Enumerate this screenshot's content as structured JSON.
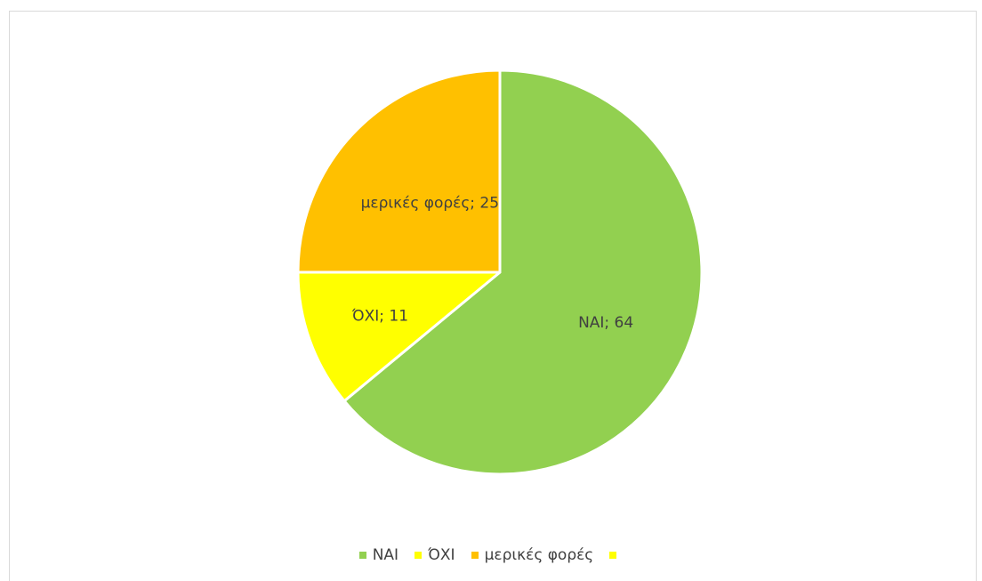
{
  "chart_data": {
    "type": "pie",
    "categories": [
      "ΝΑΙ",
      "ΌΧΙ",
      "μερικές φορές",
      ""
    ],
    "values": [
      64,
      11,
      25,
      0
    ],
    "colors": [
      "#92d050",
      "#ffff00",
      "#ffc000",
      "#ffff00"
    ],
    "data_labels": [
      "ΝΑΙ; 64",
      "ΌΧΙ; 11",
      "μερικές φορές; 25",
      ""
    ],
    "legend": {
      "position": "bottom",
      "entries": [
        "ΝΑΙ",
        "ΌΧΙ",
        "μερικές φορές",
        ""
      ]
    },
    "title": ""
  }
}
